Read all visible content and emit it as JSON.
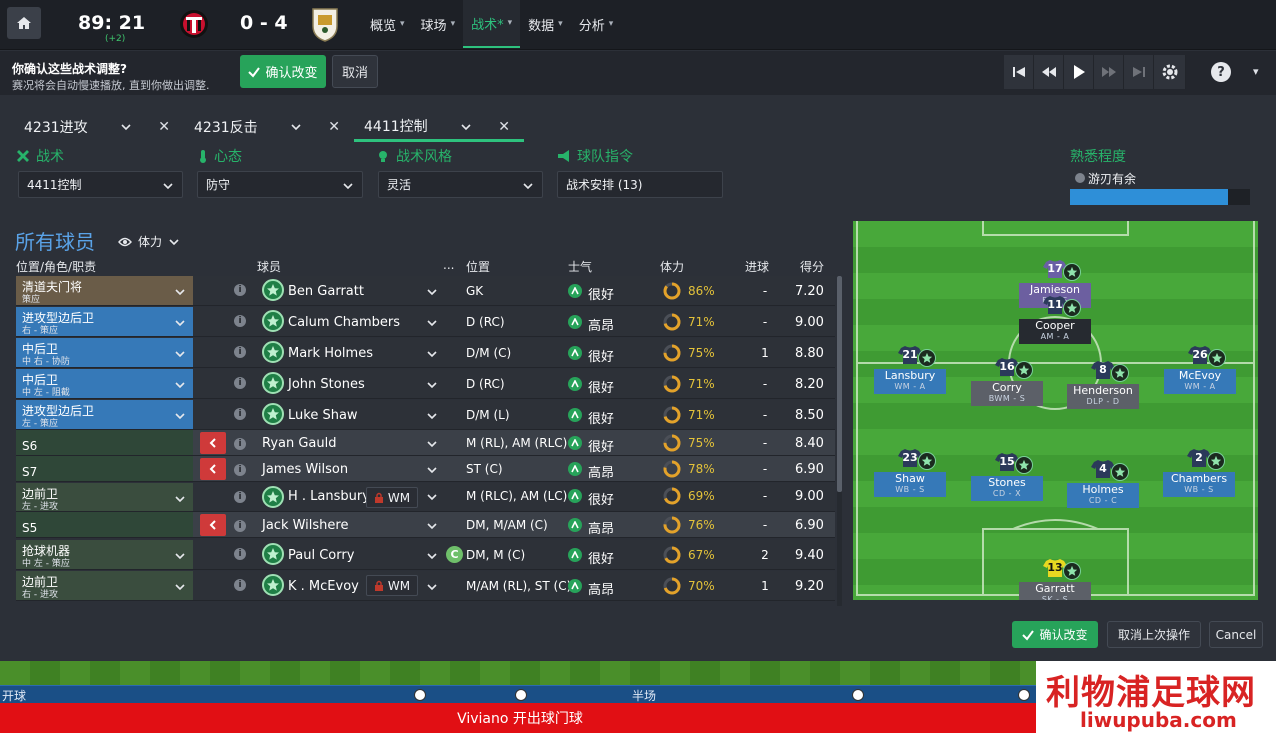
{
  "match": {
    "time": "89: 21",
    "added_time": "(+2)",
    "score": "0 - 4"
  },
  "nav": [
    {
      "label": "概览"
    },
    {
      "label": "球场"
    },
    {
      "label": "战术*"
    },
    {
      "label": "数据"
    },
    {
      "label": "分析"
    }
  ],
  "confirm_bar": {
    "title": "你确认这些战术调整?",
    "subtitle": "赛况将会自动慢速播放, 直到你做出调整.",
    "confirm_label": "确认改变",
    "cancel_label": "取消"
  },
  "tactic_tabs": [
    {
      "label": "4231进攻"
    },
    {
      "label": "4231反击"
    },
    {
      "label": "4411控制"
    }
  ],
  "sections": {
    "tactic": {
      "label": "战术",
      "value": "4411控制"
    },
    "mentality": {
      "label": "心态",
      "value": "防守"
    },
    "style": {
      "label": "战术风格",
      "value": "灵活"
    },
    "instructions": {
      "label": "球队指令",
      "value": "战术安排 (13)"
    },
    "familiarity": {
      "label": "熟悉程度",
      "value": "游刃有余",
      "level": 0.88
    }
  },
  "players_panel": {
    "title": "所有球员",
    "view": "体力",
    "headers": {
      "role": "位置/角色/职责",
      "player": "球员",
      "more": "...",
      "position": "位置",
      "morale": "士气",
      "condition": "体力",
      "goals": "进球",
      "rating": "得分"
    },
    "rows": [
      {
        "role": "清道夫门将",
        "duty": "策应",
        "name": "Ben Garratt",
        "pos": "GK",
        "morale": "很好",
        "condition": "86%",
        "cond_level": 0.86,
        "goals": "-",
        "rating": "7.20"
      },
      {
        "role": "进攻型边后卫",
        "duty": "右 - 策应",
        "name": "Calum Chambers",
        "pos": "D (RC)",
        "morale": "高昂",
        "condition": "71%",
        "cond_level": 0.71,
        "goals": "-",
        "rating": "9.00"
      },
      {
        "role": "中后卫",
        "duty": "中 右 - 协防",
        "name": "Mark Holmes",
        "pos": "D/M (C)",
        "morale": "很好",
        "condition": "75%",
        "cond_level": 0.75,
        "goals": "1",
        "rating": "8.80"
      },
      {
        "role": "中后卫",
        "duty": "中 左 - 阻截",
        "name": "John Stones",
        "pos": "D (RC)",
        "morale": "很好",
        "condition": "71%",
        "cond_level": 0.71,
        "goals": "-",
        "rating": "8.20"
      },
      {
        "role": "进攻型边后卫",
        "duty": "左 - 策应",
        "name": "Luke Shaw",
        "pos": "D/M (L)",
        "morale": "很好",
        "condition": "71%",
        "cond_level": 0.71,
        "goals": "-",
        "rating": "8.50"
      },
      {
        "role": "S6",
        "duty": "",
        "name": "Ryan Gauld",
        "pos": "M (RL), AM (RLC)",
        "morale": "很好",
        "condition": "75%",
        "cond_level": 0.75,
        "goals": "-",
        "rating": "8.40"
      },
      {
        "role": "S7",
        "duty": "",
        "name": "James Wilson",
        "pos": "ST (C)",
        "morale": "高昂",
        "condition": "78%",
        "cond_level": 0.78,
        "goals": "-",
        "rating": "6.90"
      },
      {
        "role": "边前卫",
        "duty": "左 - 进攻",
        "name": "H . Lansbury",
        "tag": "WM",
        "pos": "M (RLC), AM (LC)",
        "morale": "很好",
        "condition": "69%",
        "cond_level": 0.69,
        "goals": "-",
        "rating": "9.00"
      },
      {
        "role": "S5",
        "duty": "",
        "name": "Jack Wilshere",
        "pos": "DM, M/AM (C)",
        "morale": "高昂",
        "condition": "76%",
        "cond_level": 0.76,
        "goals": "-",
        "rating": "6.90"
      },
      {
        "role": "抢球机器",
        "duty": "中 左 - 策应",
        "name": "Paul Corry",
        "captain": "C",
        "pos": "DM, M (C)",
        "morale": "很好",
        "condition": "67%",
        "cond_level": 0.67,
        "goals": "2",
        "rating": "9.40"
      },
      {
        "role": "边前卫",
        "duty": "右 - 进攻",
        "name": "K . McEvoy",
        "tag": "WM",
        "pos": "M/AM (RL), ST (C)",
        "morale": "高昂",
        "condition": "70%",
        "cond_level": 0.7,
        "goals": "1",
        "rating": "9.20"
      }
    ]
  },
  "pitch_players": [
    {
      "num": "17",
      "name": "Jamieson",
      "role": "F9 - S"
    },
    {
      "num": "11",
      "name": "Cooper",
      "role": "AM - A"
    },
    {
      "num": "21",
      "name": "Lansbury",
      "role": "WM - A"
    },
    {
      "num": "16",
      "name": "Corry",
      "role": "BWM - S"
    },
    {
      "num": "8",
      "name": "Henderson",
      "role": "DLP - D"
    },
    {
      "num": "26",
      "name": "McEvoy",
      "role": "WM - A"
    },
    {
      "num": "23",
      "name": "Shaw",
      "role": "WB - S"
    },
    {
      "num": "15",
      "name": "Stones",
      "role": "CD - X"
    },
    {
      "num": "4",
      "name": "Holmes",
      "role": "CD - C"
    },
    {
      "num": "2",
      "name": "Chambers",
      "role": "WB - S"
    },
    {
      "num": "13",
      "name": "Garratt",
      "role": "SK - S"
    }
  ],
  "bottom": {
    "confirm_label": "确认改变",
    "undo_label": "取消上次操作",
    "cancel_label": "Cancel"
  },
  "match_bar": {
    "kickoff": "开球",
    "halftime": "半场",
    "commentary": "Viviano 开出球门球"
  },
  "watermark": {
    "cn": "利物浦足球网",
    "url": "liwupuba.com"
  },
  "colors": {
    "accent_green": "#27a35a",
    "blue_title": "#5aa3e8",
    "swap_red": "#cf3a3a",
    "condition_yellow": "#e3c23a",
    "commentary_red": "#e10f14"
  }
}
